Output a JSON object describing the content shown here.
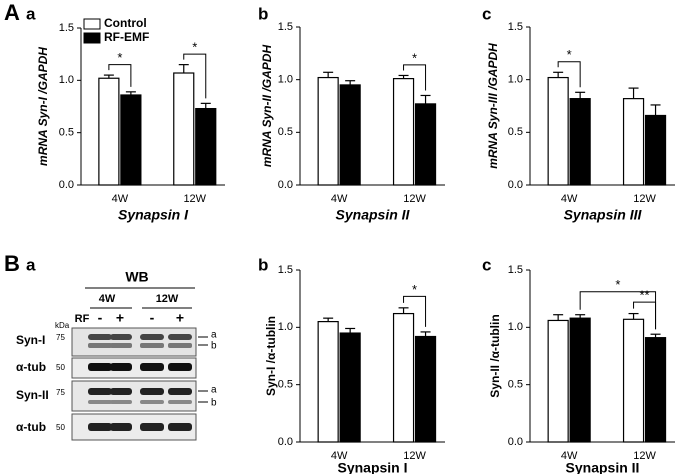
{
  "panel_labels": [
    "A",
    "a",
    "b",
    "c",
    "B",
    "a",
    "b",
    "c"
  ],
  "blot": {
    "title": "WB",
    "groups": [
      "4W",
      "12W"
    ],
    "rf_label": "RF",
    "treatments": [
      "-",
      "+",
      "-",
      "+"
    ],
    "kda_label": "kDa",
    "rows": [
      {
        "label": "Syn-I",
        "marker": "75",
        "bands": [
          "a",
          "b"
        ]
      },
      {
        "label": "α-tub",
        "marker": "50"
      },
      {
        "label": "Syn-II",
        "marker": "75",
        "bands": [
          "a",
          "b"
        ]
      },
      {
        "label": "α-tub",
        "marker": "50"
      }
    ]
  },
  "chart_data": [
    {
      "type": "bar",
      "x_label": "Synapsin I",
      "y_label": "mRNA Syn-I /GAPDH",
      "label_style": "italic",
      "legend": "upper left",
      "categories": [
        "4W",
        "12W"
      ],
      "series": [
        {
          "name": "Control",
          "color": "#ffffff",
          "values": [
            1.02,
            1.07
          ],
          "errors": [
            0.03,
            0.08
          ]
        },
        {
          "name": "RF-EMF",
          "color": "#000000",
          "values": [
            0.86,
            0.73
          ],
          "errors": [
            0.03,
            0.05
          ]
        }
      ],
      "ylim": [
        0,
        1.5
      ],
      "yticks": [
        {
          "value": 0,
          "label": "0.0"
        },
        {
          "value": 0.5,
          "label": "0.5"
        },
        {
          "value": 1,
          "label": "1.0"
        },
        {
          "value": 1.5,
          "label": "1.5"
        }
      ],
      "annotations": [
        {
          "text": "*",
          "from": [
            "4W",
            "Control"
          ],
          "to": [
            "4W",
            "RF-EMF"
          ]
        },
        {
          "text": "*",
          "from": [
            "12W",
            "Control"
          ],
          "to": [
            "12W",
            "RF-EMF"
          ]
        }
      ]
    },
    {
      "type": "bar",
      "x_label": "Synapsin II",
      "y_label": "mRNA Syn-II /GAPDH",
      "label_style": "italic",
      "categories": [
        "4W",
        "12W"
      ],
      "series": [
        {
          "name": "Control",
          "color": "#ffffff",
          "values": [
            1.02,
            1.01
          ],
          "errors": [
            0.05,
            0.03
          ]
        },
        {
          "name": "RF-EMF",
          "color": "#000000",
          "values": [
            0.95,
            0.77
          ],
          "errors": [
            0.04,
            0.08
          ]
        }
      ],
      "ylim": [
        0,
        1.5
      ],
      "yticks": [
        {
          "value": 0,
          "label": "0.0"
        },
        {
          "value": 0.5,
          "label": "0.5"
        },
        {
          "value": 1,
          "label": "1.0"
        },
        {
          "value": 1.5,
          "label": "1.5"
        }
      ],
      "annotations": [
        {
          "text": "*",
          "from": [
            "12W",
            "Control"
          ],
          "to": [
            "12W",
            "RF-EMF"
          ]
        }
      ]
    },
    {
      "type": "bar",
      "x_label": "Synapsin III",
      "y_label": "mRNA Syn-III /GAPDH",
      "label_style": "italic",
      "categories": [
        "4W",
        "12W"
      ],
      "series": [
        {
          "name": "Control",
          "color": "#ffffff",
          "values": [
            1.02,
            0.82
          ],
          "errors": [
            0.05,
            0.1
          ]
        },
        {
          "name": "RF-EMF",
          "color": "#000000",
          "values": [
            0.82,
            0.66
          ],
          "errors": [
            0.06,
            0.1
          ]
        }
      ],
      "ylim": [
        0,
        1.5
      ],
      "yticks": [
        {
          "value": 0,
          "label": "0.0"
        },
        {
          "value": 0.5,
          "label": "0.5"
        },
        {
          "value": 1,
          "label": "1.0"
        },
        {
          "value": 1.5,
          "label": "1.5"
        }
      ],
      "annotations": [
        {
          "text": "*",
          "from": [
            "4W",
            "Control"
          ],
          "to": [
            "4W",
            "RF-EMF"
          ]
        }
      ]
    },
    {
      "type": "bar",
      "x_label": "Synapsin I",
      "y_label": "Syn-I /α-tublin",
      "label_style": "normal",
      "categories": [
        "4W",
        "12W"
      ],
      "series": [
        {
          "name": "Control",
          "color": "#ffffff",
          "values": [
            1.05,
            1.12
          ],
          "errors": [
            0.03,
            0.05
          ]
        },
        {
          "name": "RF-EMF",
          "color": "#000000",
          "values": [
            0.95,
            0.92
          ],
          "errors": [
            0.04,
            0.04
          ]
        }
      ],
      "ylim": [
        0,
        1.5
      ],
      "yticks": [
        {
          "value": 0,
          "label": "0.0"
        },
        {
          "value": 0.5,
          "label": "0.5"
        },
        {
          "value": 1,
          "label": "1.0"
        },
        {
          "value": 1.5,
          "label": "1.5"
        }
      ],
      "annotations": [
        {
          "text": "*",
          "from": [
            "12W",
            "Control"
          ],
          "to": [
            "12W",
            "RF-EMF"
          ]
        }
      ]
    },
    {
      "type": "bar",
      "x_label": "Synapsin II",
      "y_label": "Syn-II /α-tublin",
      "label_style": "normal",
      "categories": [
        "4W",
        "12W"
      ],
      "series": [
        {
          "name": "Control",
          "color": "#ffffff",
          "values": [
            1.06,
            1.07
          ],
          "errors": [
            0.05,
            0.05
          ]
        },
        {
          "name": "RF-EMF",
          "color": "#000000",
          "values": [
            1.08,
            0.91
          ],
          "errors": [
            0.03,
            0.03
          ]
        }
      ],
      "ylim": [
        0,
        1.5
      ],
      "yticks": [
        {
          "value": 0,
          "label": "0.0"
        },
        {
          "value": 0.5,
          "label": "0.5"
        },
        {
          "value": 1,
          "label": "1.0"
        },
        {
          "value": 1.5,
          "label": "1.5"
        }
      ],
      "annotations": [
        {
          "text": "**",
          "from": [
            "12W",
            "Control"
          ],
          "to": [
            "12W",
            "RF-EMF"
          ]
        },
        {
          "text": "*",
          "from": [
            "4W",
            "RF-EMF"
          ],
          "to": [
            "12W",
            "RF-EMF"
          ]
        }
      ]
    }
  ]
}
